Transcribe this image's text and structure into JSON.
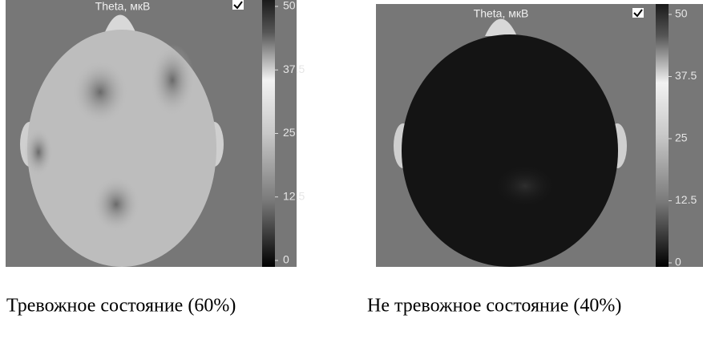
{
  "panels": [
    {
      "title": "Theta, мкВ",
      "clim": [
        0,
        50
      ],
      "colorbar_ticks": [
        50,
        37.5,
        25,
        12.5,
        0
      ],
      "caption": "Тревожное состояние (60%)"
    },
    {
      "title": "Theta, мкВ",
      "clim": [
        0,
        50
      ],
      "colorbar_ticks": [
        50,
        37.5,
        25,
        12.5,
        0
      ],
      "caption": "Не тревожное состояние (40%)"
    }
  ]
}
